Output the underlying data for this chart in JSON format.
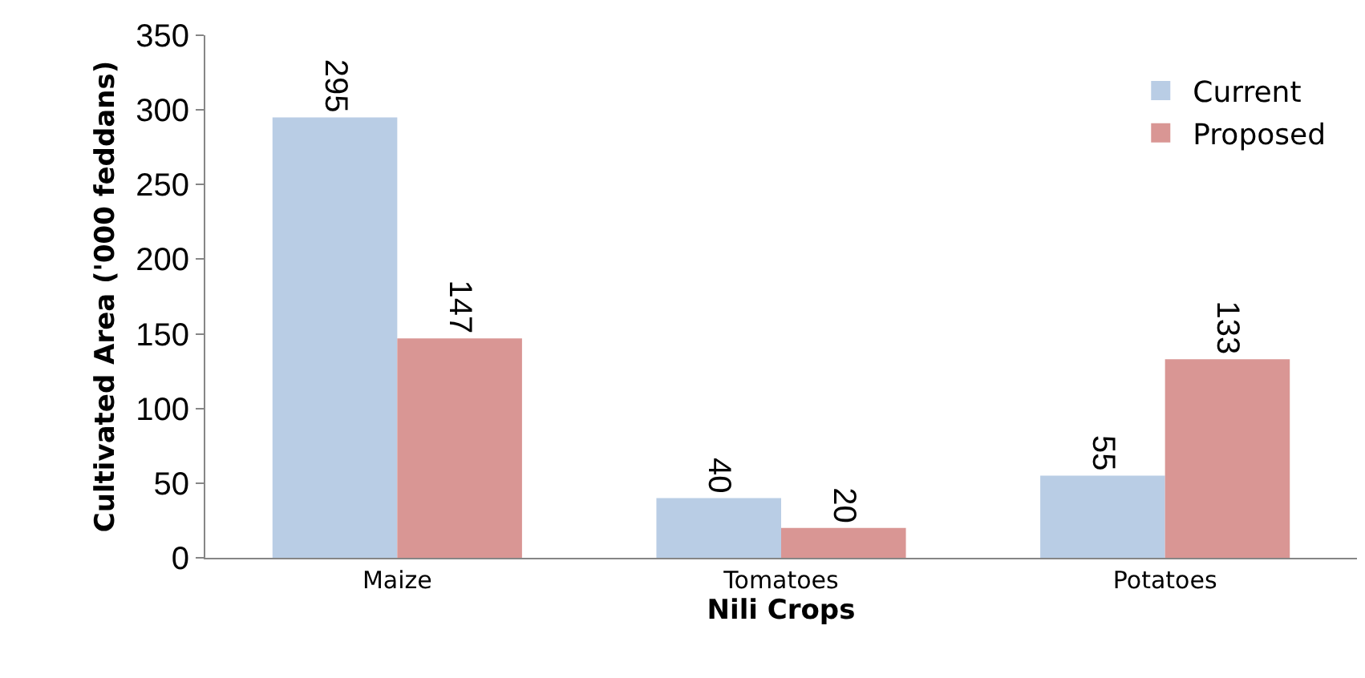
{
  "chart_data": {
    "type": "bar",
    "xlabel": "Nili Crops",
    "ylabel": "Cultivated Area ('000 feddans)",
    "categories": [
      "Maize",
      "Tomatoes",
      "Potatoes"
    ],
    "series": [
      {
        "name": "Current",
        "color": "#b9cde5",
        "values": [
          295,
          40,
          55
        ]
      },
      {
        "name": "Proposed",
        "color": "#d99694",
        "values": [
          147,
          20,
          133
        ]
      }
    ],
    "ylim": [
      0,
      350
    ],
    "yticks": [
      0,
      50,
      100,
      150,
      200,
      250,
      300,
      350
    ],
    "legend": "top right",
    "data_labels": true
  }
}
